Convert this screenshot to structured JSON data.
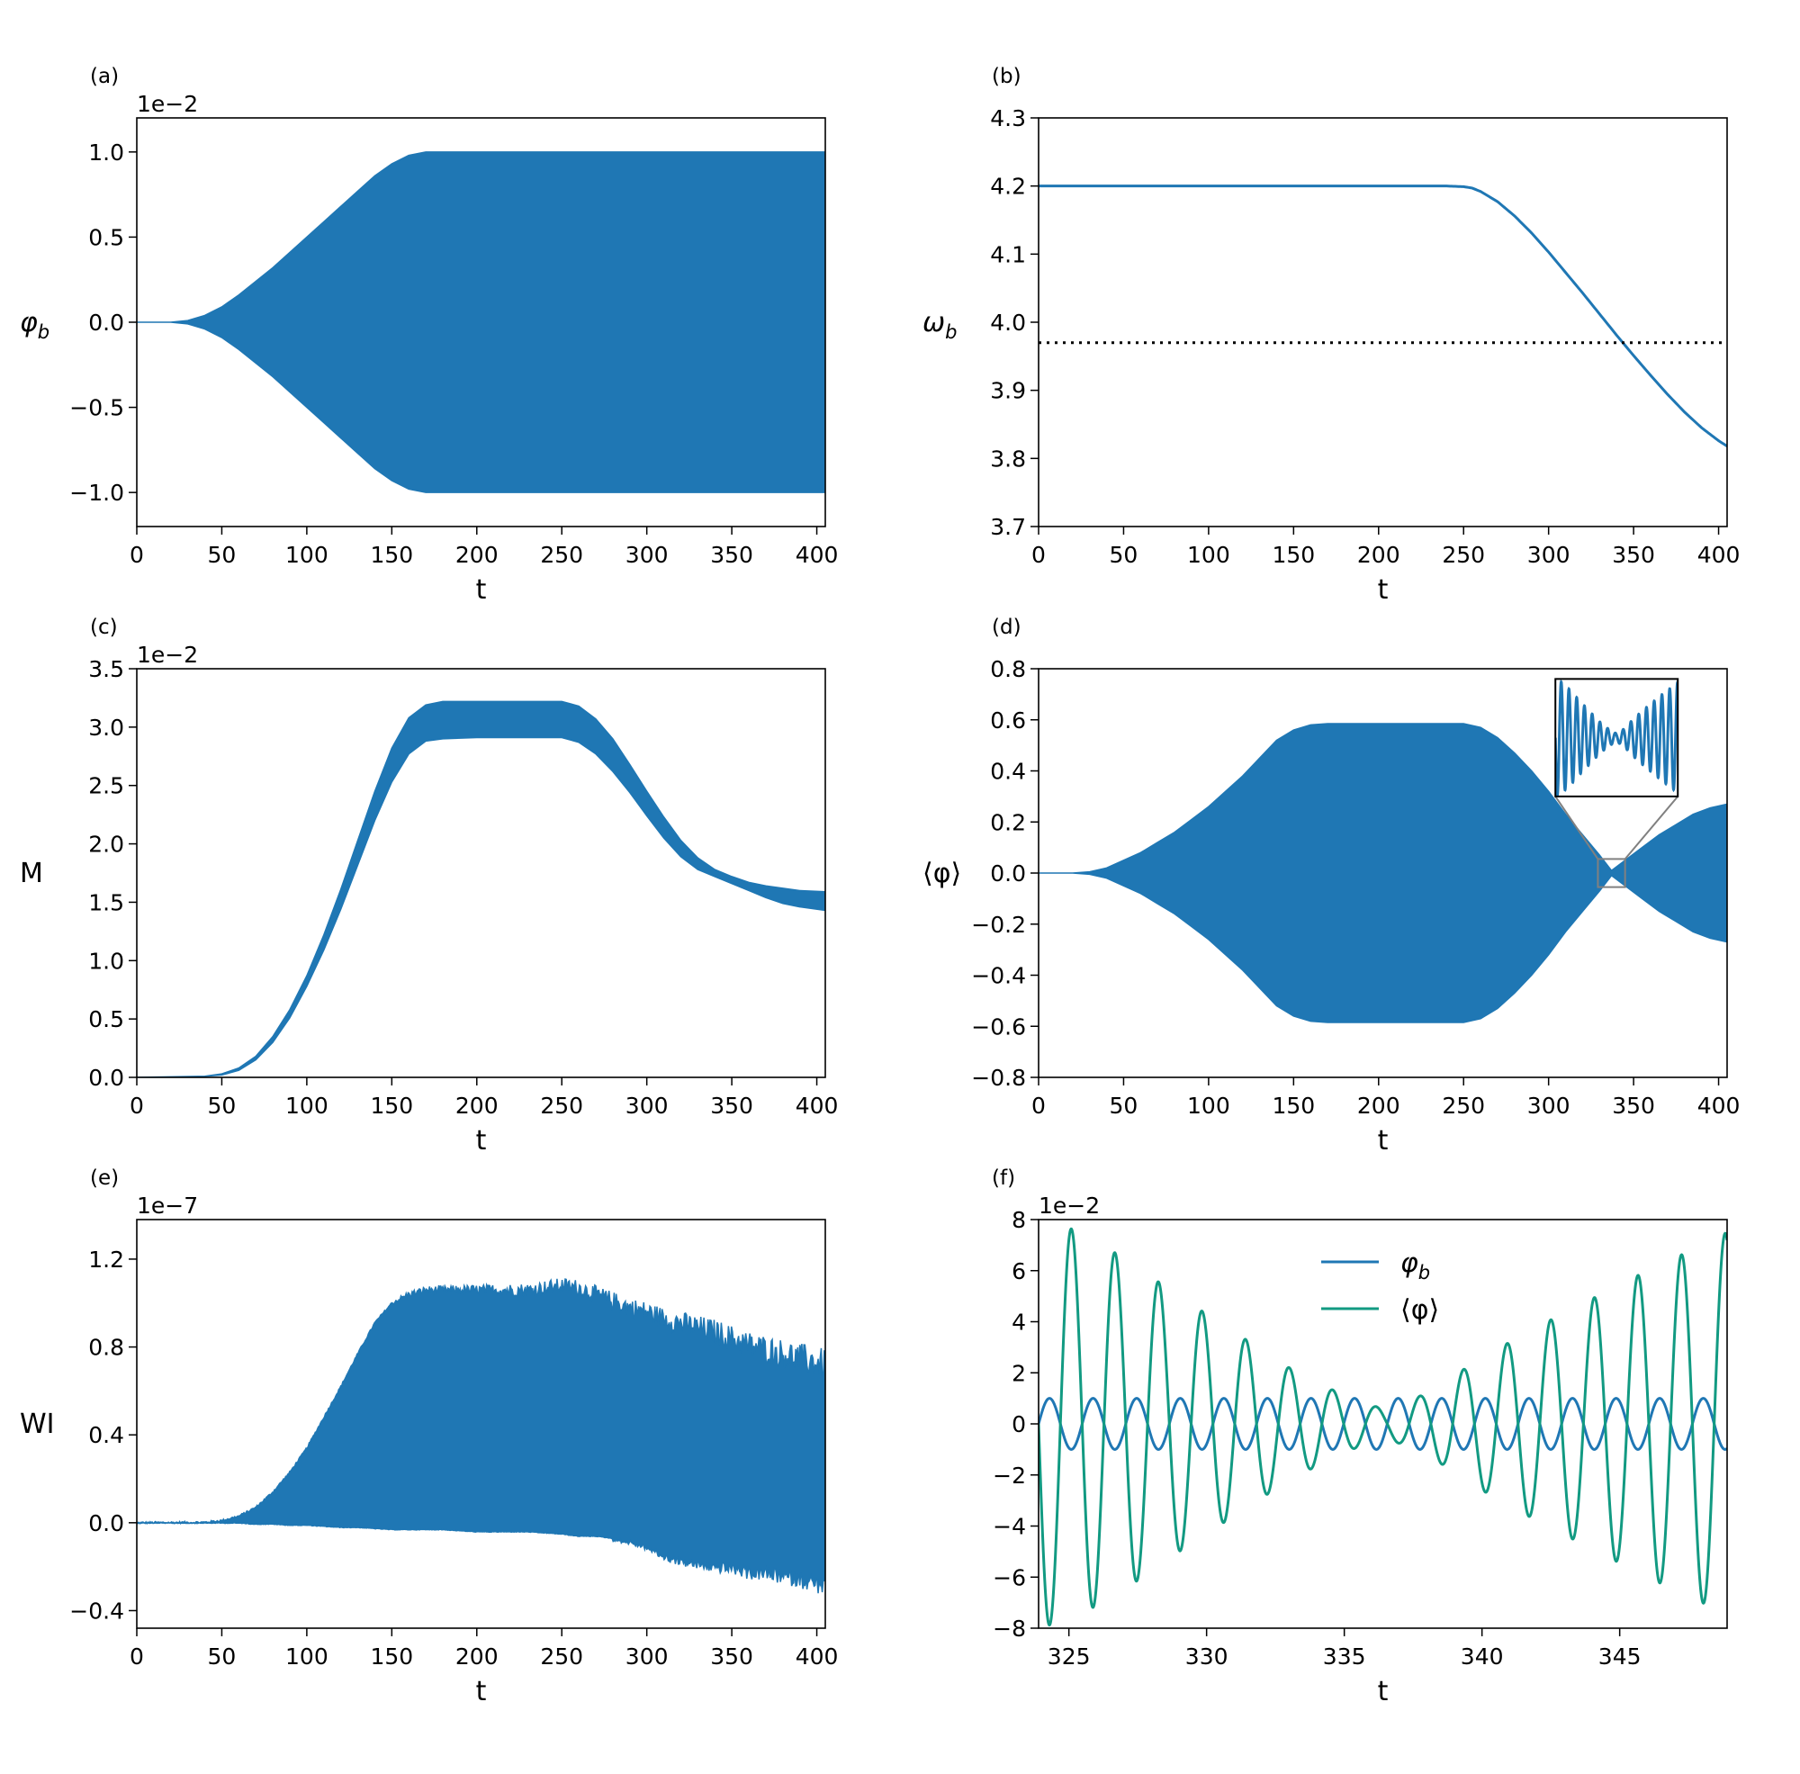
{
  "figure": {
    "background": "#ffffff",
    "color_blue": "#1f77b4",
    "color_green": "#129a82"
  },
  "chart_data": [
    {
      "id": "a",
      "panel_label": "(a)",
      "type": "line",
      "style": "envelope",
      "xlabel": "t",
      "ylabel": "φ",
      "ylabel_sub": "b",
      "xlim": [
        0,
        405
      ],
      "ylim": [
        -1.2,
        1.2
      ],
      "yscale_offset": "1e−2",
      "xticks": [
        0,
        50,
        100,
        150,
        200,
        250,
        300,
        350,
        400
      ],
      "xtick_labels": [
        "0",
        "50",
        "100",
        "150",
        "200",
        "250",
        "300",
        "350",
        "400"
      ],
      "yticks": [
        -1.0,
        -0.5,
        0.0,
        0.5,
        1.0
      ],
      "ytick_labels": [
        "−1.0",
        "−0.5",
        "0.0",
        "0.5",
        "1.0"
      ],
      "series": [
        {
          "color": "#1f77b4",
          "x": [
            0,
            20,
            30,
            40,
            50,
            60,
            70,
            80,
            90,
            100,
            110,
            120,
            130,
            140,
            150,
            160,
            170,
            180,
            200,
            250,
            300,
            350,
            405
          ],
          "upper": [
            0,
            0,
            0.01,
            0.04,
            0.09,
            0.16,
            0.24,
            0.32,
            0.41,
            0.5,
            0.59,
            0.68,
            0.77,
            0.86,
            0.93,
            0.98,
            1.0,
            1.0,
            1.0,
            1.0,
            1.0,
            1.0,
            1.0
          ],
          "lower": [
            0,
            0,
            -0.01,
            -0.04,
            -0.09,
            -0.16,
            -0.24,
            -0.32,
            -0.41,
            -0.5,
            -0.59,
            -0.68,
            -0.77,
            -0.86,
            -0.93,
            -0.98,
            -1.0,
            -1.0,
            -1.0,
            -1.0,
            -1.0,
            -1.0,
            -1.0
          ]
        }
      ]
    },
    {
      "id": "b",
      "panel_label": "(b)",
      "type": "line",
      "style": "line",
      "xlabel": "t",
      "ylabel": "ω",
      "ylabel_sub": "b",
      "xlim": [
        0,
        405
      ],
      "ylim": [
        3.7,
        4.3
      ],
      "yscale_offset": "",
      "xticks": [
        0,
        50,
        100,
        150,
        200,
        250,
        300,
        350,
        400
      ],
      "xtick_labels": [
        "0",
        "50",
        "100",
        "150",
        "200",
        "250",
        "300",
        "350",
        "400"
      ],
      "yticks": [
        3.7,
        3.8,
        3.9,
        4.0,
        4.1,
        4.2,
        4.3
      ],
      "ytick_labels": [
        "3.7",
        "3.8",
        "3.9",
        "4.0",
        "4.1",
        "4.2",
        "4.3"
      ],
      "series": [
        {
          "color": "#1f77b4",
          "x": [
            0,
            240,
            250,
            255,
            260,
            270,
            280,
            290,
            300,
            310,
            320,
            330,
            340,
            350,
            360,
            370,
            380,
            390,
            400,
            405
          ],
          "y": [
            4.2,
            4.2,
            4.199,
            4.197,
            4.192,
            4.177,
            4.156,
            4.131,
            4.103,
            4.073,
            4.043,
            4.012,
            3.981,
            3.951,
            3.922,
            3.894,
            3.868,
            3.845,
            3.826,
            3.818
          ]
        }
      ],
      "hline": {
        "y": 3.97,
        "style": "dotted",
        "color": "#000000"
      }
    },
    {
      "id": "c",
      "panel_label": "(c)",
      "type": "line",
      "style": "envelope",
      "xlabel": "t",
      "ylabel": "M",
      "ylabel_sub": "",
      "xlim": [
        0,
        405
      ],
      "ylim": [
        0,
        3.5
      ],
      "yscale_offset": "1e−2",
      "xticks": [
        0,
        50,
        100,
        150,
        200,
        250,
        300,
        350,
        400
      ],
      "xtick_labels": [
        "0",
        "50",
        "100",
        "150",
        "200",
        "250",
        "300",
        "350",
        "400"
      ],
      "yticks": [
        0.0,
        0.5,
        1.0,
        1.5,
        2.0,
        2.5,
        3.0,
        3.5
      ],
      "ytick_labels": [
        "0.0",
        "0.5",
        "1.0",
        "1.5",
        "2.0",
        "2.5",
        "3.0",
        "3.5"
      ],
      "series": [
        {
          "color": "#1f77b4",
          "x": [
            0,
            40,
            50,
            60,
            70,
            80,
            90,
            100,
            110,
            120,
            130,
            140,
            150,
            160,
            170,
            180,
            200,
            250,
            260,
            270,
            280,
            290,
            300,
            310,
            320,
            330,
            340,
            350,
            360,
            370,
            380,
            390,
            405
          ],
          "upper": [
            0,
            0.01,
            0.03,
            0.08,
            0.18,
            0.35,
            0.58,
            0.87,
            1.22,
            1.61,
            2.03,
            2.45,
            2.82,
            3.08,
            3.19,
            3.22,
            3.22,
            3.22,
            3.18,
            3.07,
            2.9,
            2.68,
            2.45,
            2.23,
            2.03,
            1.88,
            1.78,
            1.72,
            1.67,
            1.64,
            1.62,
            1.6,
            1.59
          ],
          "lower": [
            0,
            0.01,
            0.02,
            0.06,
            0.15,
            0.3,
            0.51,
            0.78,
            1.09,
            1.44,
            1.82,
            2.2,
            2.53,
            2.77,
            2.88,
            2.9,
            2.91,
            2.91,
            2.87,
            2.77,
            2.62,
            2.44,
            2.24,
            2.05,
            1.89,
            1.78,
            1.72,
            1.66,
            1.6,
            1.54,
            1.49,
            1.46,
            1.43
          ]
        }
      ]
    },
    {
      "id": "d",
      "panel_label": "(d)",
      "type": "line",
      "style": "envelope",
      "xlabel": "t",
      "ylabel": "⟨φ⟩",
      "ylabel_sub": "",
      "xlim": [
        0,
        405
      ],
      "ylim": [
        -0.8,
        0.8
      ],
      "yscale_offset": "",
      "xticks": [
        0,
        50,
        100,
        150,
        200,
        250,
        300,
        350,
        400
      ],
      "xtick_labels": [
        "0",
        "50",
        "100",
        "150",
        "200",
        "250",
        "300",
        "350",
        "400"
      ],
      "yticks": [
        -0.8,
        -0.6,
        -0.4,
        -0.2,
        0.0,
        0.2,
        0.4,
        0.6,
        0.8
      ],
      "ytick_labels": [
        "−0.8",
        "−0.6",
        "−0.4",
        "−0.2",
        "0.0",
        "0.2",
        "0.4",
        "0.6",
        "0.8"
      ],
      "series": [
        {
          "color": "#1f77b4",
          "x": [
            0,
            20,
            30,
            40,
            50,
            60,
            70,
            80,
            90,
            100,
            110,
            120,
            130,
            140,
            150,
            160,
            170,
            200,
            250,
            260,
            270,
            280,
            290,
            300,
            310,
            320,
            330,
            337,
            345,
            355,
            365,
            375,
            385,
            395,
            405
          ],
          "upper": [
            0,
            0,
            0.005,
            0.02,
            0.05,
            0.08,
            0.12,
            0.16,
            0.21,
            0.26,
            0.32,
            0.38,
            0.45,
            0.52,
            0.56,
            0.58,
            0.585,
            0.585,
            0.585,
            0.57,
            0.53,
            0.47,
            0.4,
            0.32,
            0.23,
            0.15,
            0.07,
            0.01,
            0.05,
            0.1,
            0.15,
            0.19,
            0.23,
            0.255,
            0.27
          ],
          "lower": [
            0,
            0,
            -0.005,
            -0.02,
            -0.05,
            -0.08,
            -0.12,
            -0.16,
            -0.21,
            -0.26,
            -0.32,
            -0.38,
            -0.45,
            -0.52,
            -0.56,
            -0.58,
            -0.585,
            -0.585,
            -0.585,
            -0.57,
            -0.53,
            -0.47,
            -0.4,
            -0.32,
            -0.23,
            -0.15,
            -0.07,
            -0.01,
            -0.05,
            -0.1,
            -0.15,
            -0.19,
            -0.23,
            -0.255,
            -0.27
          ]
        }
      ],
      "zoom_region": {
        "x": [
          329,
          345
        ],
        "y": [
          -0.055,
          0.055
        ]
      },
      "inset": {
        "xlim": [
          324,
          349
        ],
        "ylim": [
          -8,
          8
        ],
        "inset_range": [
          [
            304,
            376
          ],
          [
            0.3,
            0.76
          ]
        ]
      }
    },
    {
      "id": "e",
      "panel_label": "(e)",
      "type": "line",
      "style": "noisy",
      "xlabel": "t",
      "ylabel": "WI",
      "ylabel_sub": "",
      "xlim": [
        0,
        405
      ],
      "ylim": [
        -0.48,
        1.38
      ],
      "yscale_offset": "1e−7",
      "xticks": [
        0,
        50,
        100,
        150,
        200,
        250,
        300,
        350,
        400
      ],
      "xtick_labels": [
        "0",
        "50",
        "100",
        "150",
        "200",
        "250",
        "300",
        "350",
        "400"
      ],
      "yticks": [
        -0.4,
        0.0,
        0.4,
        0.8,
        1.2
      ],
      "ytick_labels": [
        "−0.4",
        "0.0",
        "0.4",
        "0.8",
        "1.2"
      ],
      "series": [
        {
          "color": "#1f77b4",
          "x": [
            0,
            40,
            50,
            60,
            70,
            80,
            90,
            100,
            110,
            120,
            130,
            140,
            150,
            160,
            170,
            180,
            200,
            230,
            250,
            260,
            270,
            280,
            290,
            300,
            310,
            320,
            330,
            340,
            350,
            360,
            370,
            380,
            390,
            400,
            405
          ],
          "upper": [
            0,
            0.002,
            0.01,
            0.03,
            0.07,
            0.14,
            0.23,
            0.34,
            0.48,
            0.62,
            0.77,
            0.91,
            1.0,
            1.04,
            1.06,
            1.06,
            1.06,
            1.06,
            1.08,
            1.07,
            1.04,
            1.01,
            0.98,
            0.96,
            0.93,
            0.91,
            0.89,
            0.87,
            0.84,
            0.81,
            0.79,
            0.77,
            0.75,
            0.73,
            0.72
          ],
          "lower": [
            0,
            0,
            0,
            0,
            -0.005,
            -0.005,
            -0.01,
            -0.01,
            -0.015,
            -0.02,
            -0.02,
            -0.025,
            -0.03,
            -0.03,
            -0.03,
            -0.03,
            -0.04,
            -0.04,
            -0.05,
            -0.06,
            -0.06,
            -0.07,
            -0.08,
            -0.1,
            -0.14,
            -0.16,
            -0.17,
            -0.18,
            -0.18,
            -0.2,
            -0.2,
            -0.21,
            -0.22,
            -0.24,
            -0.25
          ]
        }
      ]
    },
    {
      "id": "f",
      "panel_label": "(f)",
      "type": "line",
      "style": "oscillation",
      "xlabel": "t",
      "ylabel": "",
      "ylabel_sub": "",
      "xlim": [
        323.9,
        348.9
      ],
      "ylim": [
        -8,
        8
      ],
      "yscale_offset": "1e−2",
      "xticks": [
        325,
        330,
        335,
        340,
        345
      ],
      "xtick_labels": [
        "325",
        "330",
        "335",
        "340",
        "345"
      ],
      "yticks": [
        -8,
        -6,
        -4,
        -2,
        0,
        2,
        4,
        6,
        8
      ],
      "ytick_labels": [
        "−8",
        "−6",
        "−4",
        "−2",
        "0",
        "2",
        "4",
        "6",
        "8"
      ],
      "legend": {
        "position": "upper-center"
      },
      "series": [
        {
          "name": "φb",
          "name_base": "φ",
          "name_sub": "b",
          "color": "#1f77b4",
          "amplitude": {
            "x": [
              323.9,
              348.9
            ],
            "y": [
              1.0,
              1.0
            ]
          },
          "frequency": 3.97,
          "phase": 0
        },
        {
          "name": "⟨φ⟩",
          "name_base": "⟨φ⟩",
          "name_sub": "",
          "color": "#129a82",
          "amplitude": {
            "x": [
              323.9,
              325.2,
              327,
              329,
              331,
              333,
              335,
              336.5,
              338,
              340,
              342,
              344,
              346,
              348,
              348.9
            ],
            "y": [
              8.0,
              7.6,
              6.5,
              5.0,
              3.6,
              2.2,
              1.1,
              0.55,
              1.2,
              2.6,
              3.8,
              4.9,
              6.0,
              7.0,
              7.5
            ]
          },
          "frequency": 3.97,
          "phase": 3.141592653589793,
          "beat_frequency": 0.21
        }
      ]
    }
  ]
}
